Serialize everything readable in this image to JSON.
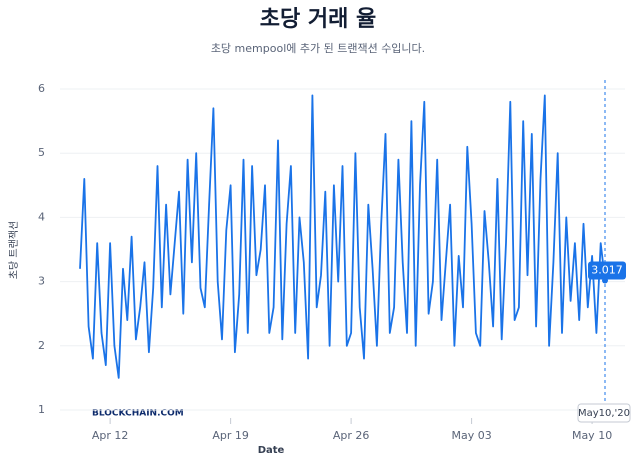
{
  "chart_data": {
    "type": "line",
    "title": "초당 거래 율",
    "subtitle": "초당 mempool에 추가 된 트랜잭션 수입니다.",
    "y_label": "초당 트랜잭션",
    "x_label": "Date",
    "watermark": "BLOCKCHAIN.COM",
    "tooltip_date": "May10,'20",
    "color": "#1a73e8",
    "grid": true,
    "ylim": [
      1,
      6
    ],
    "yticks": [
      1,
      2,
      3,
      4,
      5,
      6
    ],
    "categories": [
      null,
      null,
      null,
      null,
      null,
      null,
      null,
      "Apr 12",
      null,
      null,
      null,
      null,
      null,
      null,
      null,
      null,
      null,
      null,
      null,
      null,
      null,
      null,
      null,
      null,
      null,
      null,
      null,
      null,
      null,
      null,
      null,
      null,
      null,
      null,
      null,
      "Apr 19",
      null,
      null,
      null,
      null,
      null,
      null,
      null,
      null,
      null,
      null,
      null,
      null,
      null,
      null,
      null,
      null,
      null,
      null,
      null,
      null,
      null,
      null,
      null,
      null,
      null,
      null,
      null,
      "Apr 26",
      null,
      null,
      null,
      null,
      null,
      null,
      null,
      null,
      null,
      null,
      null,
      null,
      null,
      null,
      null,
      null,
      null,
      null,
      null,
      null,
      null,
      null,
      null,
      null,
      null,
      null,
      null,
      "May 03",
      null,
      null,
      null,
      null,
      null,
      null,
      null,
      null,
      null,
      null,
      null,
      null,
      null,
      null,
      null,
      null,
      null,
      null,
      null,
      null,
      null,
      null,
      null,
      null,
      null,
      null,
      null,
      "May 10",
      null,
      null,
      null
    ],
    "values": [
      3.2,
      4.6,
      2.3,
      1.8,
      3.6,
      2.2,
      1.7,
      3.6,
      2.0,
      1.5,
      3.2,
      2.4,
      3.7,
      2.1,
      2.6,
      3.3,
      1.9,
      2.9,
      4.8,
      2.6,
      4.2,
      2.8,
      3.6,
      4.4,
      2.5,
      4.9,
      3.3,
      5.0,
      2.9,
      2.6,
      4.2,
      5.7,
      3.0,
      2.1,
      3.8,
      4.5,
      1.9,
      2.8,
      4.9,
      2.2,
      4.8,
      3.1,
      3.5,
      4.5,
      2.2,
      2.6,
      5.2,
      2.1,
      3.9,
      4.8,
      2.2,
      4.0,
      3.3,
      1.8,
      5.9,
      2.6,
      3.1,
      4.4,
      2.0,
      4.5,
      3.0,
      4.8,
      2.0,
      2.2,
      5.0,
      2.6,
      1.8,
      4.2,
      3.2,
      2.0,
      3.9,
      5.3,
      2.2,
      2.6,
      4.9,
      3.3,
      2.2,
      5.5,
      2.0,
      4.5,
      5.8,
      2.5,
      3.0,
      4.9,
      2.4,
      3.3,
      4.2,
      2.0,
      3.4,
      2.6,
      5.1,
      3.9,
      2.2,
      2.0,
      4.1,
      3.3,
      2.3,
      4.6,
      2.1,
      3.6,
      5.8,
      2.4,
      2.6,
      5.5,
      3.1,
      5.3,
      2.3,
      4.6,
      5.9,
      2.0,
      3.3,
      5.0,
      2.2,
      4.0,
      2.7,
      3.6,
      2.4,
      3.9,
      2.6,
      3.4,
      2.2,
      3.6,
      3.017
    ]
  }
}
